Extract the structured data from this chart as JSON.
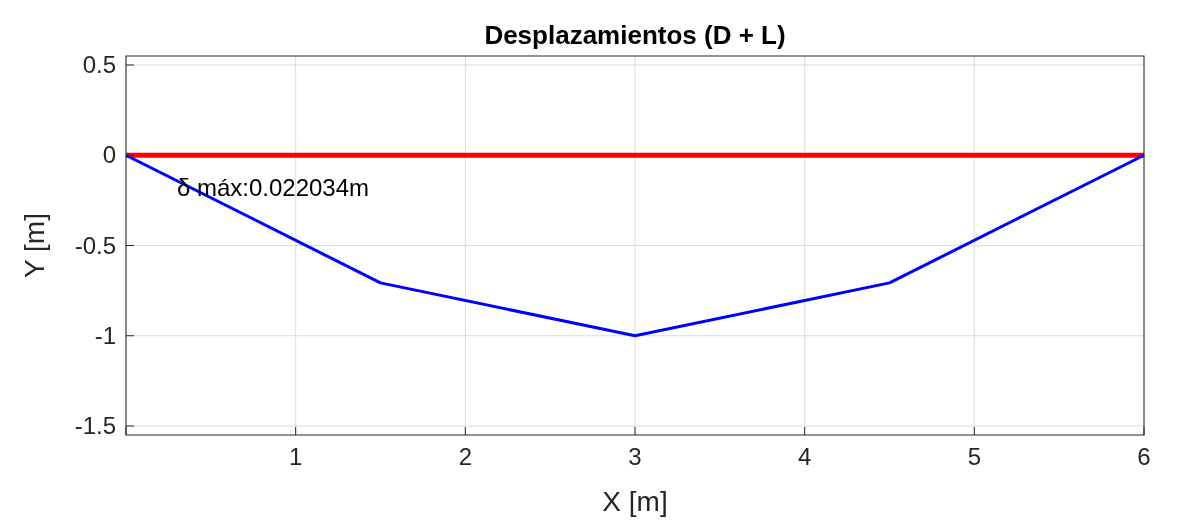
{
  "chart_data": {
    "type": "line",
    "title": "Desplazamientos (D + L)",
    "xlabel": "X [m]",
    "ylabel": "Y [m]",
    "xlim": [
      0,
      6
    ],
    "ylim": [
      -1.55,
      0.55
    ],
    "xticks": [
      {
        "value": 0,
        "label": null
      },
      1,
      2,
      3,
      4,
      5,
      6
    ],
    "yticks": [
      -1.5,
      -1,
      -0.5,
      0,
      0.5
    ],
    "grid": true,
    "series": [
      {
        "color": "#ff0000",
        "x": [
          0,
          6
        ],
        "values": [
          0,
          0
        ]
      },
      {
        "color": "#0000ff",
        "x": [
          0,
          1.5,
          3,
          4.5,
          6
        ],
        "values": [
          0,
          -0.707,
          -1,
          -0.707,
          0
        ]
      }
    ],
    "annotations": [
      {
        "text": "δ máx:0.022034m",
        "x": 0.3,
        "y": -0.18
      }
    ]
  }
}
